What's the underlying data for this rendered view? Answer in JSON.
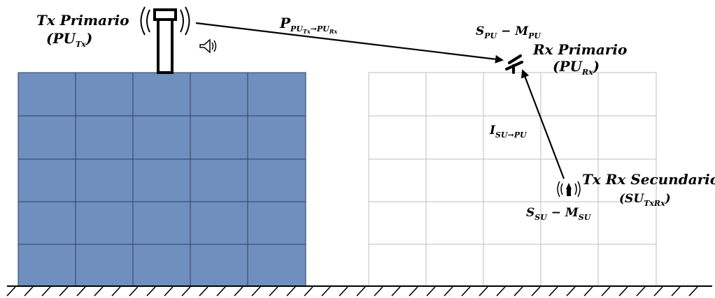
{
  "colors": {
    "primary_block": "#6f8fbf",
    "primary_grid": "#2f3f5a",
    "secondary_grid": "#bdbdbd",
    "ink": "#000000"
  },
  "icons": {
    "primary_tx": "antenna-tower-icon",
    "speaker": "speaker-icon",
    "primary_rx": "receiver-antenna-icon",
    "secondary_txrx": "tx-rx-antenna-icon"
  },
  "labels": {
    "tx_primary": {
      "title": "Tx Primario",
      "sym_open": "(",
      "sym_main": "PU",
      "sym_sub": "Tx",
      "sym_close": ")"
    },
    "rx_primary": {
      "title": "Rx Primario",
      "sym_open": "(",
      "sym_main": "PU",
      "sym_sub": "Rx",
      "sym_close": ")"
    },
    "txrx_secondary": {
      "title": "Tx Rx Secundario",
      "sym_open": "(",
      "sym_main": "SU",
      "sym_sub": "TxRx",
      "sym_close": ")"
    },
    "power_link": {
      "main": "P",
      "sub": "PU",
      "subsub": "Tx",
      "sub_tail": "→PU",
      "subsub2": "Rx"
    },
    "interference_link": {
      "main": "I",
      "sub": "SU→PU"
    },
    "primary_sensing": {
      "s_main": "S",
      "s_sub": "PU",
      "minus": " − ",
      "m_main": "M",
      "m_sub": "PU"
    },
    "secondary_sensing": {
      "s_main": "S",
      "s_sub": "SU",
      "minus": " − ",
      "m_main": "M",
      "m_sub": "SU"
    }
  }
}
